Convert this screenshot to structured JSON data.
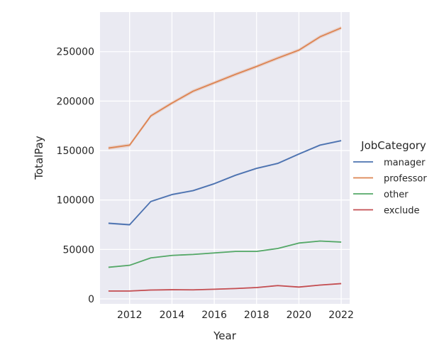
{
  "chart_data": {
    "type": "line",
    "title": "",
    "xlabel": "Year",
    "ylabel": "TotalPay",
    "xlim": [
      2010.6,
      2022.4
    ],
    "ylim": [
      -5000,
      290000
    ],
    "xticks": [
      2012,
      2014,
      2016,
      2018,
      2020,
      2022
    ],
    "yticks": [
      0,
      50000,
      100000,
      150000,
      200000,
      250000
    ],
    "x": [
      2011,
      2012,
      2013,
      2014,
      2015,
      2016,
      2017,
      2018,
      2019,
      2020,
      2021,
      2022
    ],
    "grid": true,
    "legend": {
      "title": "JobCategory",
      "placement": "right"
    },
    "series": [
      {
        "name": "manager",
        "color": "#4c72b0",
        "values": [
          76500,
          75000,
          98500,
          105500,
          109500,
          116500,
          125000,
          132000,
          137000,
          146500,
          155500,
          160000
        ]
      },
      {
        "name": "professor",
        "color": "#dd8452",
        "values": [
          152500,
          155500,
          185000,
          198000,
          210000,
          218500,
          227000,
          235000,
          243500,
          251500,
          265000,
          274000
        ]
      },
      {
        "name": "other",
        "color": "#55a868",
        "values": [
          32000,
          34000,
          41500,
          44000,
          45000,
          46500,
          48000,
          48000,
          51000,
          56500,
          58500,
          57500
        ]
      },
      {
        "name": "exclude",
        "color": "#c44e52",
        "values": [
          8000,
          8000,
          9000,
          9300,
          9200,
          9800,
          10500,
          11500,
          13500,
          12000,
          14000,
          15500
        ]
      }
    ]
  }
}
